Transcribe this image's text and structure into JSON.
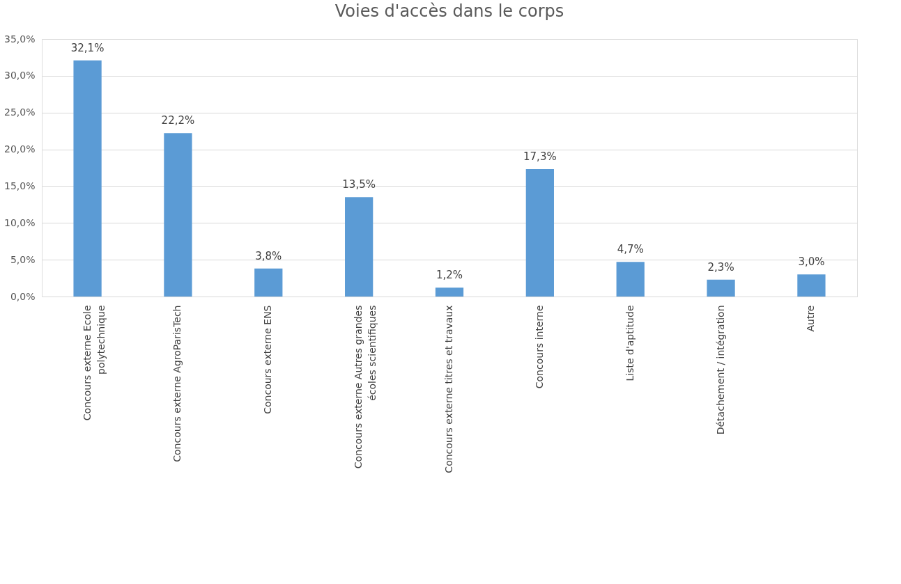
{
  "chart_data": {
    "type": "bar",
    "title": "Voies d'accès dans le corps",
    "categories": [
      "Concours externe Ecole polytechnique",
      "Concours externe AgroParisTech",
      "Concours externe ENS",
      "Concours externe Autres grandes écoles scientifiques",
      "Concours externe titres et travaux",
      "Concours interne",
      "Liste d'aptitude",
      "Détachement / intégration",
      "Autre"
    ],
    "values": [
      32.1,
      22.2,
      3.8,
      13.5,
      1.2,
      17.3,
      4.7,
      2.3,
      3.0
    ],
    "value_labels": [
      "32,1%",
      "22,2%",
      "3,8%",
      "13,5%",
      "1,2%",
      "17,3%",
      "4,7%",
      "2,3%",
      "3,0%"
    ],
    "color": "#5b9bd5",
    "ylim": [
      0,
      35
    ],
    "yticks": [
      {
        "value": 0,
        "label": "0,0%"
      },
      {
        "value": 5,
        "label": "5,0%"
      },
      {
        "value": 10,
        "label": "10,0%"
      },
      {
        "value": 15,
        "label": "15,0%"
      },
      {
        "value": 20,
        "label": "20,0%"
      },
      {
        "value": 25,
        "label": "25,0%"
      },
      {
        "value": 30,
        "label": "30,0%"
      },
      {
        "value": 35,
        "label": "35,0%"
      }
    ],
    "grid": "y"
  }
}
